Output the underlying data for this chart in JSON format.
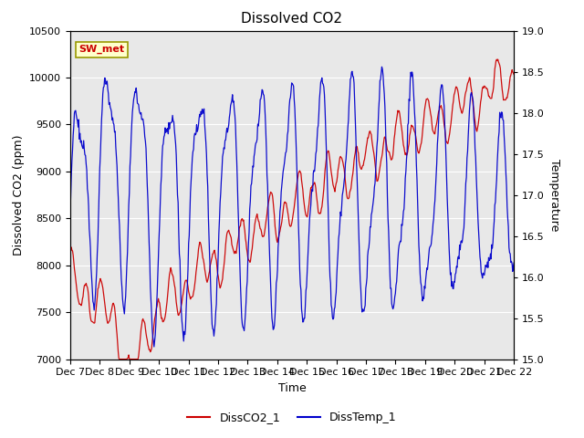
{
  "title": "Dissolved CO2",
  "xlabel": "Time",
  "ylabel_left": "Dissolved CO2 (ppm)",
  "ylabel_right": "Temperature",
  "ylim_left": [
    7000,
    10500
  ],
  "ylim_right": [
    15.0,
    19.0
  ],
  "yticks_left": [
    7000,
    7500,
    8000,
    8500,
    9000,
    9500,
    10000,
    10500
  ],
  "yticks_right": [
    15.0,
    15.5,
    16.0,
    16.5,
    17.0,
    17.5,
    18.0,
    18.5,
    19.0
  ],
  "x_tick_labels": [
    "Dec 7",
    "Dec 8",
    "Dec 9",
    "Dec 10",
    "Dec 11",
    "Dec 12",
    "Dec 13",
    "Dec 14",
    "Dec 15",
    "Dec 16",
    "Dec 17",
    "Dec 18",
    "Dec 19",
    "Dec 20",
    "Dec 21",
    "Dec 22"
  ],
  "annotation_text": "SW_met",
  "annotation_bg": "#ffffcc",
  "annotation_border": "#999900",
  "co2_color": "#cc0000",
  "temp_color": "#0000cc",
  "background_color": "#e8e8e8",
  "legend_co2": "DissCO2_1",
  "legend_temp": "DissTemp_1",
  "title_fontsize": 11,
  "axis_fontsize": 9,
  "tick_fontsize": 8
}
